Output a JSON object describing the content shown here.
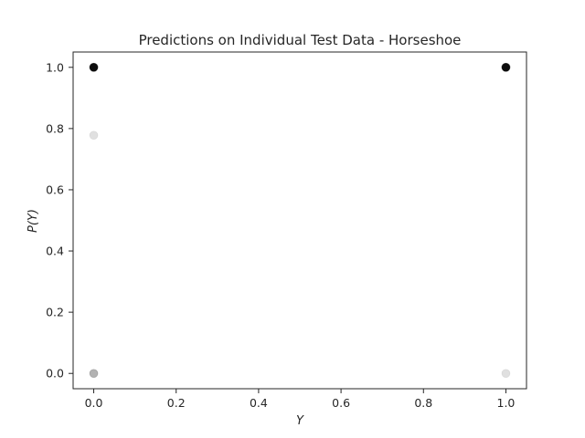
{
  "chart_data": {
    "type": "scatter",
    "title": "Predictions on Individual Test Data - Horseshoe",
    "xlabel": "Y",
    "ylabel": "P(Y)",
    "xlim": [
      -0.05,
      1.05
    ],
    "ylim": [
      -0.05,
      1.05
    ],
    "xticks": [
      "0.0",
      "0.2",
      "0.4",
      "0.6",
      "0.8",
      "1.0"
    ],
    "yticks": [
      "0.0",
      "0.2",
      "0.4",
      "0.6",
      "0.8",
      "1.0"
    ],
    "grid": false,
    "marker_color": "#000000",
    "points": [
      {
        "x": 0.0,
        "y": 1.0,
        "alpha": 0.95
      },
      {
        "x": 0.0,
        "y": 0.778,
        "alpha": 0.12
      },
      {
        "x": 0.0,
        "y": 0.0,
        "alpha": 0.3
      },
      {
        "x": 1.0,
        "y": 1.0,
        "alpha": 0.95
      },
      {
        "x": 1.0,
        "y": 0.0,
        "alpha": 0.12
      }
    ]
  }
}
